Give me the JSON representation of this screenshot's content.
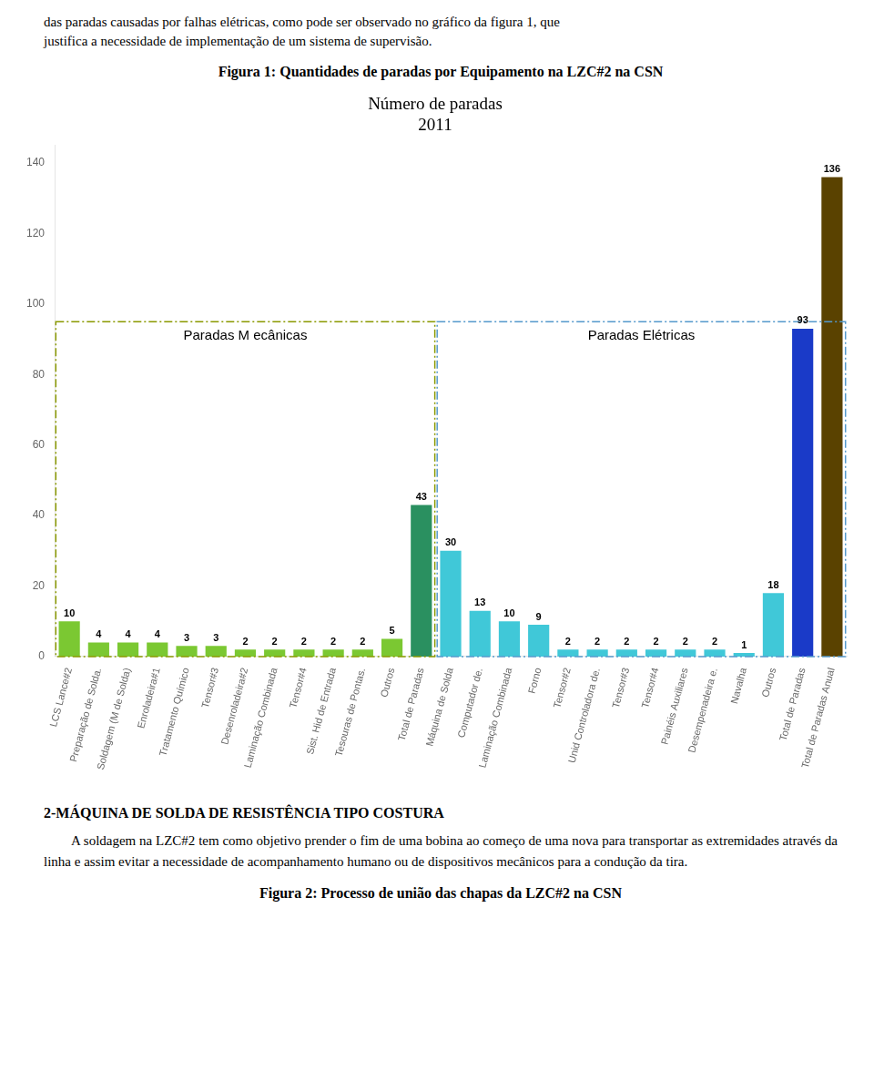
{
  "chart_data": {
    "type": "bar",
    "title": "Número de paradas\n2011",
    "caption": "Figura 1: Quantidades de paradas por Equipamento na LZC#2 na CSN",
    "text_above": [
      "das paradas causadas por falhas elétricas, como pode ser observado no gráfico da figura 1, que",
      "justifica a necessidade de implementação de um sistema de supervisão."
    ],
    "section_heading": "2-MÁQUINA DE SOLDA DE RESISTÊNCIA TIPO COSTURA",
    "paragraph": "A soldagem na LZC#2 tem como objetivo prender o fim de uma bobina ao começo de uma nova para transportar as extremidades através da linha e assim evitar a necessidade de acompanhamento humano ou de dispositivos mecânicos para a condução da tira.",
    "caption_below": "Figura 2: Processo de união das chapas da LZC#2 na CSN",
    "categories": [
      "LCS Lance#2",
      "Preparação de Solda.",
      "Soldagem (M de Solda)",
      "Enroladeira#1",
      "Tratamento Químico",
      "Tensor#3",
      "Desenroladeira#2",
      "Laminação Combinada",
      "Tensor#4",
      "Sist. Hid de Entrada",
      "Tesouras de Pontas.",
      "Outros",
      "Total de Paradas",
      "Máquina de Solda",
      "Computador de.",
      "Laminação Combinada",
      "Forno",
      "Tensor#2",
      "Unid Controladora de.",
      "Tensor#3",
      "Tensor#4",
      "Painéis Auxiliares",
      "Desempenadeira e.",
      "Navalha",
      "Outros",
      "Total de Paradas",
      "Total de Paradas Anual"
    ],
    "values": [
      10,
      4,
      4,
      4,
      3,
      3,
      2,
      2,
      2,
      2,
      2,
      5,
      43,
      30,
      13,
      10,
      9,
      2,
      2,
      2,
      2,
      2,
      2,
      1,
      18,
      93,
      136
    ],
    "colors": [
      "#7bc832",
      "#7bc832",
      "#7bc832",
      "#7bc832",
      "#7bc832",
      "#7bc832",
      "#7bc832",
      "#7bc832",
      "#7bc832",
      "#7bc832",
      "#7bc832",
      "#7bc832",
      "#2a9060",
      "#40c8d8",
      "#40c8d8",
      "#40c8d8",
      "#40c8d8",
      "#40c8d8",
      "#40c8d8",
      "#40c8d8",
      "#40c8d8",
      "#40c8d8",
      "#40c8d8",
      "#40c8d8",
      "#40c8d8",
      "#1a3ac8",
      "#5a4200"
    ],
    "ylim": [
      0,
      145
    ],
    "yticks": [
      0,
      20,
      40,
      60,
      80,
      100,
      120,
      140
    ],
    "grid": false,
    "data_labels": true,
    "sections": [
      {
        "label": "Paradas M ecânicas",
        "first": "LCS Lance#2",
        "last": "Total de Paradas",
        "top": 95,
        "color": "#8a9900"
      },
      {
        "label": "Paradas Elétricas",
        "first": "Máquina de Solda",
        "last": "Total de Paradas Anual",
        "top": 95,
        "color": "#5599cc"
      }
    ]
  }
}
